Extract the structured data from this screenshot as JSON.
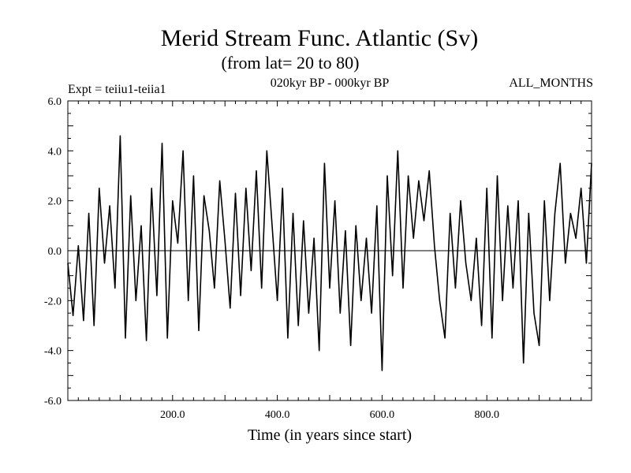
{
  "chart_data": {
    "type": "line",
    "title": "Merid Stream Func. Atlantic (Sv)",
    "subtitle": "(from lat= 20 to 80)",
    "experiment": "Expt = teiiu1-teiia1",
    "period": "020kyr BP - 000kyr BP",
    "months": "ALL_MONTHS",
    "xlabel": "Time (in years since start)",
    "ylabel": "",
    "xlim": [
      0,
      1000
    ],
    "ylim": [
      -6,
      6
    ],
    "x_ticks": [
      200,
      400,
      600,
      800
    ],
    "x_tick_labels": [
      "200.0",
      "400.0",
      "600.0",
      "800.0"
    ],
    "y_ticks": [
      -6,
      -4,
      -2,
      0,
      2,
      4,
      6
    ],
    "y_tick_labels": [
      "-6.0",
      "-4.0",
      "-2.0",
      "0.0",
      "2.0",
      "4.0",
      "6.0"
    ],
    "zero_line": true,
    "grid": false,
    "line_color": "#000000",
    "series": [
      {
        "x": [
          0,
          10,
          20,
          30,
          40,
          50,
          60,
          70,
          80,
          90,
          100,
          110,
          120,
          130,
          140,
          150,
          160,
          170,
          180,
          190,
          200,
          210,
          220,
          230,
          240,
          250,
          260,
          270,
          280,
          290,
          300,
          310,
          320,
          330,
          340,
          350,
          360,
          370,
          380,
          390,
          400,
          410,
          420,
          430,
          440,
          450,
          460,
          470,
          480,
          490,
          500,
          510,
          520,
          530,
          540,
          550,
          560,
          570,
          580,
          590,
          600,
          610,
          620,
          630,
          640,
          650,
          660,
          670,
          680,
          690,
          700,
          710,
          720,
          730,
          740,
          750,
          760,
          770,
          780,
          790,
          800,
          810,
          820,
          830,
          840,
          850,
          860,
          870,
          880,
          890,
          900,
          910,
          920,
          930,
          940,
          950,
          960,
          970,
          980,
          990,
          1000
        ],
        "values": [
          -0.5,
          -2.6,
          0.2,
          -2.8,
          1.5,
          -3.0,
          2.5,
          -0.5,
          1.8,
          -1.5,
          4.6,
          -3.5,
          2.2,
          -2.0,
          1.0,
          -3.6,
          2.5,
          -1.8,
          4.3,
          -3.5,
          2.0,
          0.3,
          4.0,
          -2.0,
          3.0,
          -3.2,
          2.2,
          0.8,
          -1.5,
          2.8,
          0.4,
          -2.3,
          2.3,
          -1.8,
          2.5,
          -0.8,
          3.2,
          -1.5,
          4.0,
          1.0,
          -2.0,
          2.5,
          -3.5,
          1.5,
          -3.0,
          1.2,
          -2.5,
          0.5,
          -4.0,
          3.5,
          -1.5,
          2.0,
          -2.5,
          0.8,
          -3.8,
          1.0,
          -2.0,
          0.5,
          -2.5,
          1.8,
          -4.8,
          3.0,
          -1.0,
          4.0,
          -1.5,
          3.0,
          0.5,
          2.8,
          1.2,
          3.2,
          0.2,
          -2.0,
          -3.5,
          1.5,
          -1.5,
          2.0,
          -0.5,
          -2.0,
          0.5,
          -3.0,
          2.5,
          -3.5,
          3.0,
          -2.0,
          1.8,
          -1.5,
          2.0,
          -4.5,
          1.5,
          -2.5,
          -3.8,
          2.0,
          -2.0,
          1.5,
          3.5,
          -0.5,
          1.5,
          0.5,
          2.5,
          -0.5,
          3.5
        ]
      }
    ]
  }
}
